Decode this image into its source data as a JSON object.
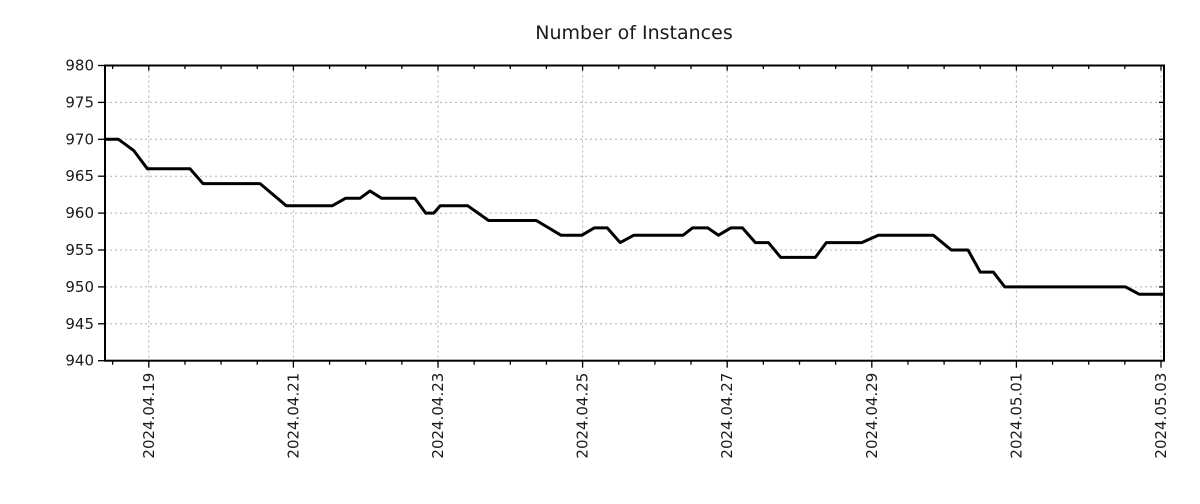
{
  "chart_data": {
    "type": "line",
    "title": "Number of Instances",
    "x_axis": {
      "kind": "date",
      "tick_labels": [
        "2024.04.19",
        "2024.04.21",
        "2024.04.23",
        "2024.04.25",
        "2024.04.27",
        "2024.04.29",
        "2024.05.01",
        "2024.05.03"
      ],
      "major_tick_positions_days": [
        0,
        2,
        4,
        6,
        8,
        10,
        12,
        14
      ],
      "minor_tick_interval_days": 0.5,
      "range_days": [
        -0.61,
        14.03
      ],
      "label_rotation_deg": -90
    },
    "y_axis": {
      "tick_labels": [
        "940",
        "945",
        "950",
        "955",
        "960",
        "965",
        "970",
        "975",
        "980"
      ],
      "tick_values": [
        940,
        945,
        950,
        955,
        960,
        965,
        970,
        975,
        980
      ],
      "gridline_values": [
        945,
        950,
        955,
        960,
        965,
        970,
        975
      ],
      "range": [
        940,
        980
      ]
    },
    "series": [
      {
        "name": "instances",
        "color": "#000000",
        "points_day_value": [
          [
            -0.6,
            970
          ],
          [
            -0.42,
            970
          ],
          [
            -0.21,
            968.5
          ],
          [
            -0.02,
            966
          ],
          [
            0.57,
            966
          ],
          [
            0.75,
            964
          ],
          [
            1.54,
            964
          ],
          [
            1.9,
            961
          ],
          [
            2.54,
            961
          ],
          [
            2.72,
            962
          ],
          [
            2.92,
            962
          ],
          [
            3.06,
            963
          ],
          [
            3.22,
            962
          ],
          [
            3.68,
            962
          ],
          [
            3.83,
            960
          ],
          [
            3.94,
            960
          ],
          [
            4.03,
            961
          ],
          [
            4.41,
            961
          ],
          [
            4.7,
            959
          ],
          [
            5.36,
            959
          ],
          [
            5.7,
            957
          ],
          [
            5.99,
            957
          ],
          [
            6.16,
            958
          ],
          [
            6.34,
            958
          ],
          [
            6.52,
            956
          ],
          [
            6.71,
            957
          ],
          [
            7.39,
            957
          ],
          [
            7.52,
            958
          ],
          [
            7.73,
            958
          ],
          [
            7.88,
            957
          ],
          [
            8.05,
            958
          ],
          [
            8.21,
            958
          ],
          [
            8.39,
            956
          ],
          [
            8.57,
            956
          ],
          [
            8.74,
            954
          ],
          [
            9.22,
            954
          ],
          [
            9.37,
            956
          ],
          [
            9.86,
            956
          ],
          [
            10.09,
            957
          ],
          [
            10.85,
            957
          ],
          [
            11.1,
            955
          ],
          [
            11.33,
            955
          ],
          [
            11.5,
            952
          ],
          [
            11.68,
            952
          ],
          [
            11.84,
            950
          ],
          [
            13.51,
            950
          ],
          [
            13.7,
            949
          ],
          [
            14.03,
            949
          ]
        ]
      }
    ],
    "grid": "dotted-gray-at-major-ticks",
    "legend": "none",
    "style": {
      "grid_color": "#b0b0b0",
      "axis_color": "#000000",
      "text_color": "#1a1a1a",
      "line_color": "#000000",
      "background": "#ffffff",
      "line_width": 3
    }
  }
}
